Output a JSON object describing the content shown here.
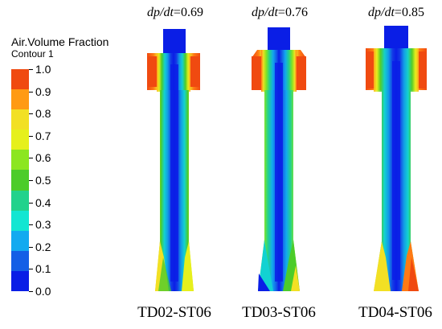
{
  "legend": {
    "title": "Air.Volume Fraction",
    "subtitle": "Contour 1",
    "ticks": [
      "1.0",
      "0.9",
      "0.8",
      "0.7",
      "0.6",
      "0.5",
      "0.4",
      "0.3",
      "0.2",
      "0.1",
      "0.0"
    ],
    "colors": [
      "#f04a10",
      "#ff9a14",
      "#f2e024",
      "#e6f01c",
      "#8ce620",
      "#4ccc2a",
      "#22d28c",
      "#12e6d2",
      "#12aaf0",
      "#145fe6",
      "#0a1ee6"
    ]
  },
  "panels": [
    {
      "rate_symbol": "dp/dt",
      "rate_value": "=0.69",
      "case": "TD02-ST06"
    },
    {
      "rate_symbol": "dp/dt",
      "rate_value": "=0.76",
      "case": "TD03-ST06"
    },
    {
      "rate_symbol": "dp/dt",
      "rate_value": "=0.85",
      "case": "TD04-ST06"
    }
  ]
}
